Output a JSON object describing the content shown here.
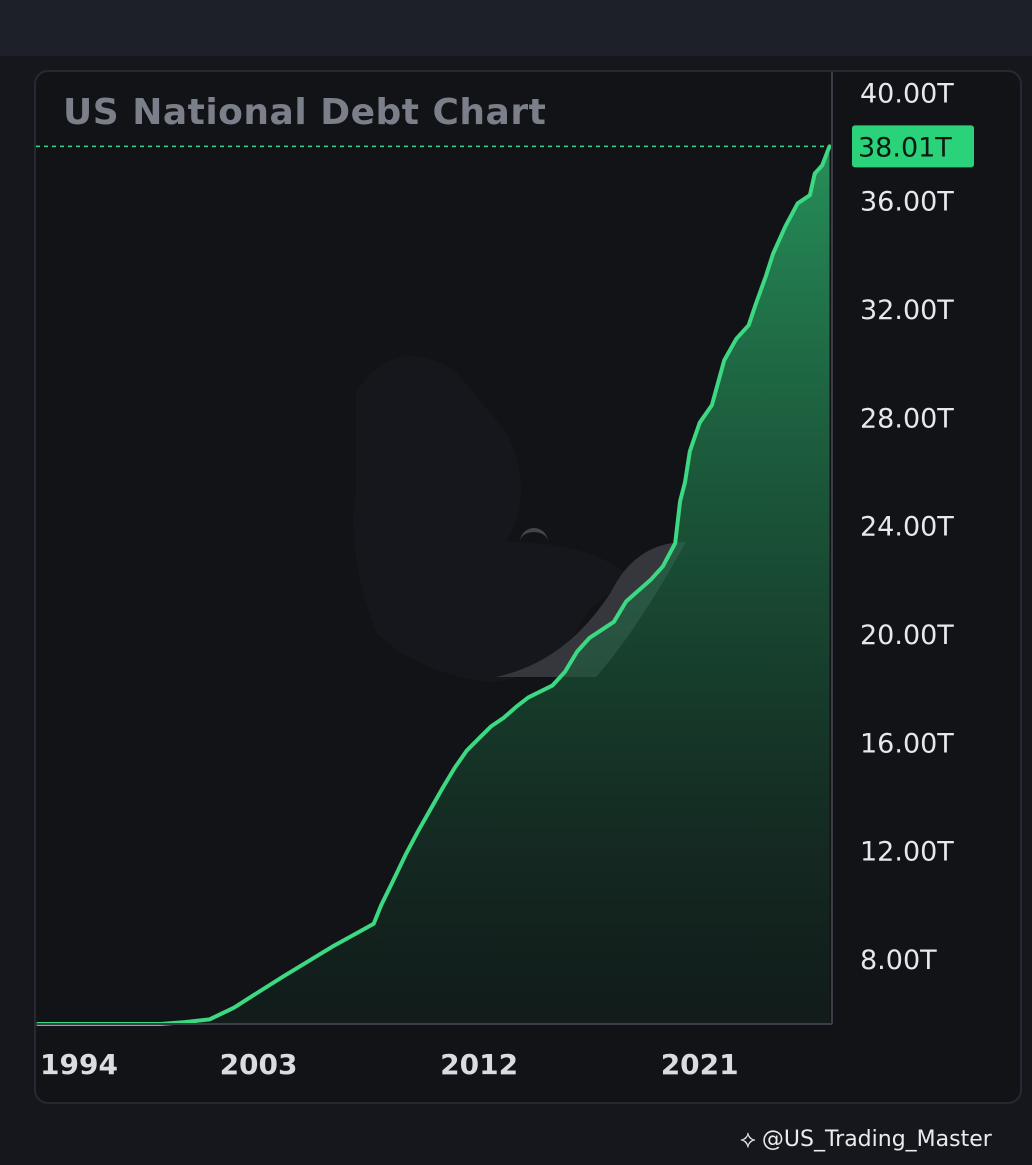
{
  "chart_data": {
    "type": "area",
    "title": "US National Debt Chart",
    "xlabel": "",
    "ylabel": "",
    "x_ticks": [
      1994,
      2003,
      2012,
      2021
    ],
    "y_ticks": [
      8,
      12,
      16,
      20,
      24,
      28,
      32,
      36,
      40
    ],
    "y_tick_labels": [
      "8.00T",
      "12.00T",
      "16.00T",
      "20.00T",
      "24.00T",
      "28.00T",
      "32.00T",
      "36.00T",
      "40.00T"
    ],
    "xlim": [
      1994,
      2026.4
    ],
    "ylim": [
      5.6,
      40.6
    ],
    "last_value_label": "38.01T",
    "grid": false,
    "axis_side": "right",
    "series": [
      {
        "color": "#3cd882",
        "x": [
          1994.0,
          1995.0,
          1996.0,
          1997.0,
          1998.0,
          1999.0,
          2000.0,
          2001.0,
          2002.0,
          2003.0,
          2004.0,
          2005.0,
          2006.0,
          2007.0,
          2007.7,
          2008.0,
          2008.5,
          2009.0,
          2009.5,
          2010.0,
          2010.5,
          2011.0,
          2011.5,
          2012.0,
          2012.5,
          2013.0,
          2013.5,
          2014.0,
          2015.0,
          2015.5,
          2016.0,
          2016.5,
          2017.0,
          2017.5,
          2018.0,
          2018.5,
          2019.0,
          2019.5,
          2020.0,
          2020.2,
          2020.4,
          2020.6,
          2021.0,
          2021.5,
          2022.0,
          2022.5,
          2023.0,
          2023.3,
          2023.7,
          2024.0,
          2024.5,
          2025.0,
          2025.5,
          2025.7,
          2026.0,
          2026.3
        ],
        "y": [
          4.7,
          4.95,
          5.2,
          5.4,
          5.5,
          5.6,
          5.67,
          5.77,
          6.2,
          6.78,
          7.35,
          7.9,
          8.45,
          8.95,
          9.3,
          9.98,
          10.9,
          11.85,
          12.7,
          13.5,
          14.3,
          15.05,
          15.7,
          16.15,
          16.6,
          16.9,
          17.3,
          17.65,
          18.1,
          18.6,
          19.35,
          19.85,
          20.15,
          20.45,
          21.2,
          21.6,
          22.0,
          22.5,
          23.35,
          24.9,
          25.6,
          26.75,
          27.8,
          28.45,
          30.1,
          30.9,
          31.4,
          32.2,
          33.2,
          34.05,
          35.05,
          35.9,
          36.2,
          37.0,
          37.3,
          38.0
        ]
      }
    ]
  },
  "watermark": {
    "text": "@US_Trading_Master",
    "icon": "binance-logo-icon"
  }
}
